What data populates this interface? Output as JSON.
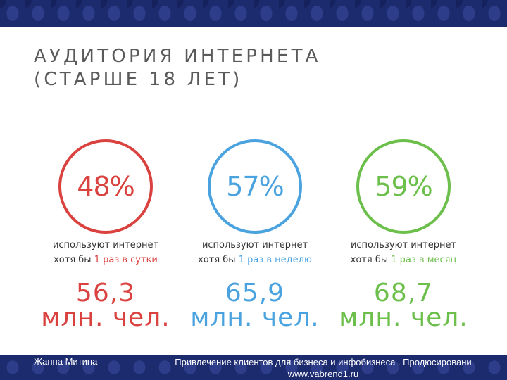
{
  "title": {
    "line1": "АУДИТОРИЯ ИНТЕРНЕТА",
    "line2": "(СТАРШЕ 18 ЛЕТ)"
  },
  "stats": [
    {
      "percent": "48%",
      "caption_line1": "используют интернет",
      "caption_prefix": "хотя бы ",
      "caption_highlight": "1 раз в сутки",
      "amount_line1": "56,3",
      "amount_line2": "млн. чел.",
      "color": "#d9423f"
    },
    {
      "percent": "57%",
      "caption_line1": "используют интернет",
      "caption_prefix": "хотя бы ",
      "caption_highlight": "1 раз в неделю",
      "amount_line1": "65,9",
      "amount_line2": "млн. чел.",
      "color": "#4aa3df"
    },
    {
      "percent": "59%",
      "caption_line1": "используют интернет",
      "caption_prefix": "хотя бы ",
      "caption_highlight": "1 раз в месяц",
      "amount_line1": "68,7",
      "amount_line2": "млн. чел.",
      "color": "#6cbf4a"
    }
  ],
  "footer": {
    "author": "Жанна Митина",
    "description_line1": "Привлечение клиентов для бизнеса и инфобизнеса . Продюсировани",
    "description_line2": "www.vabrend1.ru"
  },
  "colors": {
    "band": "#1c2a6e",
    "title_text": "#5a5a5a"
  }
}
